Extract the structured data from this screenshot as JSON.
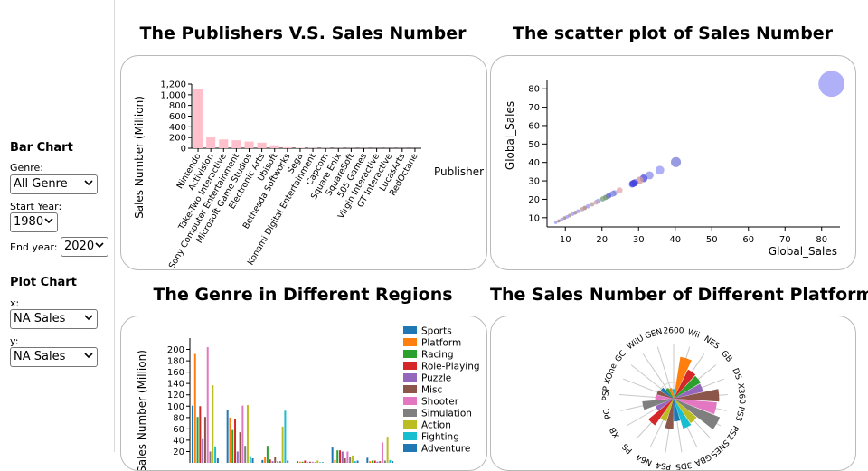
{
  "sidebar": {
    "bar_chart_heading": "Bar Chart",
    "genre_label": "Genre:",
    "genre_value": "All Genre",
    "start_year_label": "Start Year:",
    "start_year_value": "1980",
    "end_year_label": "End year:",
    "end_year_value": "2020",
    "plot_chart_heading": "Plot Chart",
    "x_label": "x:",
    "x_value": "NA Sales",
    "y_label": "y:",
    "y_value": "NA Sales"
  },
  "titles": {
    "publishers": "The Publishers V.S. Sales Number",
    "scatter": "The scatter plot of Sales Number",
    "genre": "The Genre in Different Regions",
    "platform": "The Sales Number of Different Platform"
  },
  "chart_data": [
    {
      "id": "publishers",
      "type": "bar",
      "title": "The Publishers V.S. Sales Number",
      "xlabel": "Publisher",
      "ylabel": "Sales Number (Million)",
      "ylim": [
        0,
        1200
      ],
      "yticks": [
        0,
        200,
        400,
        600,
        800,
        1000,
        1200
      ],
      "ytick_labels": [
        "0",
        "200",
        "400",
        "600",
        "800",
        "1,000",
        "1,200"
      ],
      "color": "#ffc0cb",
      "categories": [
        "Nintendo",
        "Activision",
        "Take-Two Interactive",
        "Sony Computer Entertainment",
        "Microsoft Game Studios",
        "Electronic Arts",
        "Ubisoft",
        "Bethesda Softworks",
        "Sega",
        "Konami Digital Entertainment",
        "Capcom",
        "Square Enix",
        "SquareSoft",
        "505 Games",
        "Virgin Interactive",
        "GT Interactive",
        "LucasArts",
        "RedOctane"
      ],
      "values": [
        1100,
        215,
        165,
        150,
        125,
        105,
        55,
        20,
        8,
        6,
        5,
        4,
        3,
        3,
        2,
        2,
        2,
        1
      ]
    },
    {
      "id": "scatter",
      "type": "scatter",
      "title": "The scatter plot of Sales Number",
      "xlabel": "Global_Sales",
      "ylabel": "Global_Sales",
      "xlim": [
        5,
        85
      ],
      "ylim": [
        5,
        85
      ],
      "xticks": [
        10,
        20,
        30,
        40,
        50,
        60,
        70,
        80
      ],
      "yticks": [
        10,
        20,
        30,
        40,
        50,
        60,
        70,
        80
      ],
      "points": [
        {
          "x": 82.7,
          "y": 82.7,
          "color": "#9a9af6"
        },
        {
          "x": 40.2,
          "y": 40.2,
          "color": "#7b7fd9"
        },
        {
          "x": 35.8,
          "y": 35.8,
          "color": "#9a9af6"
        },
        {
          "x": 33.0,
          "y": 33.0,
          "color": "#8f94e6"
        },
        {
          "x": 31.4,
          "y": 31.4,
          "color": "#4b4be3"
        },
        {
          "x": 30.3,
          "y": 30.3,
          "color": "#d49aa0"
        },
        {
          "x": 29.0,
          "y": 29.0,
          "color": "#6a6adf"
        },
        {
          "x": 28.6,
          "y": 28.6,
          "color": "#3b3bd9"
        },
        {
          "x": 28.3,
          "y": 28.3,
          "color": "#4646e0"
        },
        {
          "x": 24.8,
          "y": 24.8,
          "color": "#e4a8ad"
        },
        {
          "x": 23.4,
          "y": 23.4,
          "color": "#a3a3ee"
        },
        {
          "x": 23.1,
          "y": 23.1,
          "color": "#7b7fd9"
        },
        {
          "x": 22.7,
          "y": 22.7,
          "color": "#9aa0e0"
        },
        {
          "x": 21.8,
          "y": 21.8,
          "color": "#5a5ae0"
        },
        {
          "x": 21.0,
          "y": 21.0,
          "color": "#6d8c6d"
        },
        {
          "x": 20.2,
          "y": 20.2,
          "color": "#7aa07a"
        },
        {
          "x": 19.0,
          "y": 19.0,
          "color": "#9a9af6"
        },
        {
          "x": 18.4,
          "y": 18.4,
          "color": "#c2a8ad"
        },
        {
          "x": 17.3,
          "y": 17.3,
          "color": "#b89ca0"
        },
        {
          "x": 16.2,
          "y": 16.2,
          "color": "#9a9af6"
        },
        {
          "x": 15.3,
          "y": 15.3,
          "color": "#a88080"
        },
        {
          "x": 14.6,
          "y": 14.6,
          "color": "#b89ca0"
        },
        {
          "x": 13.5,
          "y": 13.5,
          "color": "#9a9af6"
        },
        {
          "x": 12.7,
          "y": 12.7,
          "color": "#a88080"
        },
        {
          "x": 12.0,
          "y": 12.0,
          "color": "#9a9af6"
        },
        {
          "x": 11.2,
          "y": 11.2,
          "color": "#b08a8a"
        },
        {
          "x": 10.5,
          "y": 10.5,
          "color": "#9a9af6"
        },
        {
          "x": 9.8,
          "y": 9.8,
          "color": "#a88080"
        },
        {
          "x": 9.0,
          "y": 9.0,
          "color": "#9a9af6"
        },
        {
          "x": 8.2,
          "y": 8.2,
          "color": "#a88080"
        },
        {
          "x": 7.4,
          "y": 7.4,
          "color": "#9a9af6"
        }
      ]
    },
    {
      "id": "genre",
      "type": "bar",
      "title": "The Genre in Different Regions",
      "ylabel": "Sales Number (Million)",
      "ylim": [
        0,
        220
      ],
      "yticks": [
        20,
        40,
        60,
        80,
        100,
        120,
        140,
        160,
        180,
        200
      ],
      "legend_position": "right",
      "series": [
        {
          "name": "Sports",
          "color": "#1f77b4"
        },
        {
          "name": "Platform",
          "color": "#ff7f0e"
        },
        {
          "name": "Racing",
          "color": "#2ca02c"
        },
        {
          "name": "Role-Playing",
          "color": "#d62728"
        },
        {
          "name": "Puzzle",
          "color": "#9467bd"
        },
        {
          "name": "Misc",
          "color": "#8c564b"
        },
        {
          "name": "Shooter",
          "color": "#e377c2"
        },
        {
          "name": "Simulation",
          "color": "#7f7f7f"
        },
        {
          "name": "Action",
          "color": "#bcbd22"
        },
        {
          "name": "Fighting",
          "color": "#17becf"
        },
        {
          "name": "Adventure",
          "color": "#1f77b4"
        }
      ],
      "groups": [
        [
          101,
          192,
          81,
          100,
          42,
          81,
          204,
          20,
          137,
          29,
          8
        ],
        [
          93,
          80,
          58,
          78,
          20,
          54,
          101,
          30,
          102,
          12,
          8
        ],
        [
          5,
          10,
          30,
          6,
          3,
          11,
          3,
          3,
          64,
          92,
          4
        ],
        [
          3,
          2,
          2,
          4,
          1,
          2,
          2,
          1,
          4,
          1,
          1
        ],
        [
          27,
          5,
          22,
          22,
          20,
          8,
          20,
          10,
          13,
          3,
          4
        ],
        [
          9,
          3,
          4,
          4,
          2,
          3,
          36,
          4,
          46,
          5,
          3
        ]
      ]
    },
    {
      "id": "platform",
      "type": "pie",
      "title": "The Sales Number of Different Platform",
      "categories": [
        "2600",
        "Wii",
        "NES",
        "GB",
        "DS",
        "X360",
        "PS3",
        "PS2",
        "SNES",
        "GBA",
        "3DS",
        "PS4",
        "N64",
        "PS",
        "XB",
        "PC",
        "PSP",
        "XOne",
        "GC",
        "WiiU",
        "GEN"
      ],
      "values": [
        0.18,
        0.78,
        0.6,
        0.58,
        0.56,
        0.84,
        0.8,
        0.92,
        0.55,
        0.58,
        0.42,
        0.56,
        0.44,
        0.6,
        0.36,
        0.58,
        0.34,
        0.32,
        0.28,
        0.22,
        0.2
      ],
      "colors": [
        "#17becf",
        "#ff7f0e",
        "#d62728",
        "#2ca02c",
        "#9467bd",
        "#8c564b",
        "#e377c2",
        "#7f7f7f",
        "#bcbd22",
        "#17becf",
        "#1f77b4",
        "#8c564b",
        "#bcbd22",
        "#d62728",
        "#9467bd",
        "#7f7f7f",
        "#e377c2",
        "#8c564b",
        "#1f77b4",
        "#2ca02c",
        "#ff7f0e"
      ]
    }
  ]
}
